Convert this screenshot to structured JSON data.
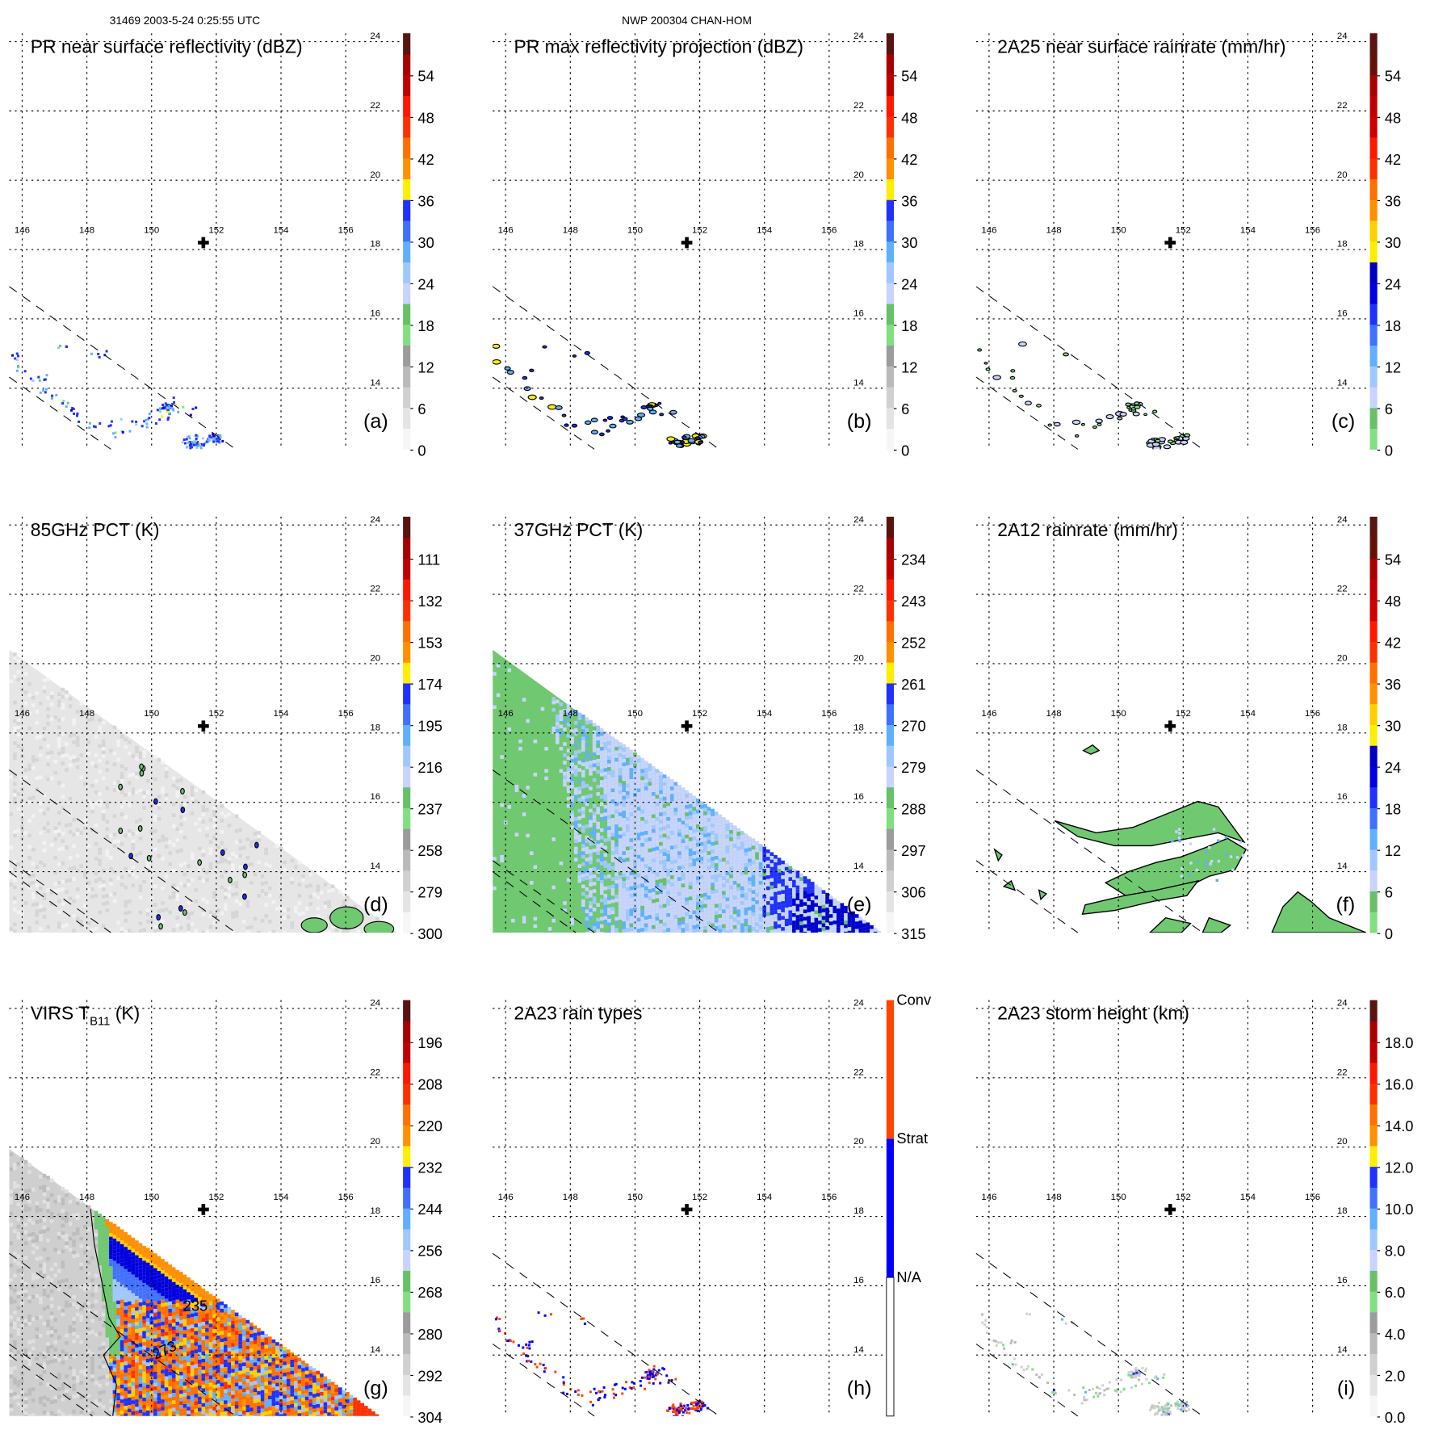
{
  "header": {
    "left": "31469 2003-5-24 0:25:55 UTC",
    "center": "NWP 200304 CHAN-HOM"
  },
  "chart_data": {
    "type": "heatmap",
    "lat_ticks": [
      "24",
      "22",
      "20",
      "18",
      "16",
      "14"
    ],
    "lon_ticks": [
      "146",
      "148",
      "150",
      "152",
      "154",
      "156"
    ],
    "lat_values": [
      24,
      22,
      20,
      18,
      16,
      14
    ],
    "lon_values": [
      146,
      148,
      150,
      152,
      154,
      156
    ],
    "storm_center": {
      "lon": 151.6,
      "lat": 18.2
    },
    "grid": "dotted",
    "palettes": {
      "std": [
        "#f6f6f6",
        "#e4e4e4",
        "#d0d0d0",
        "#bababa",
        "#9c9c9c",
        "#80e080",
        "#68c068",
        "#c8d4ff",
        "#a0c8ff",
        "#60b0ff",
        "#4070ff",
        "#2030ff",
        "#ffee00",
        "#ff9000",
        "#ff7000",
        "#ff3000",
        "#ff1800",
        "#c00000",
        "#a80000",
        "#5a1410"
      ],
      "rain": [
        "#80e080",
        "#68c068",
        "#c8d4ff",
        "#a0c8ff",
        "#60b0ff",
        "#4070ff",
        "#2030ff",
        "#0000e0",
        "#0000c0",
        "#ffee00",
        "#ffd000",
        "#ff9000",
        "#ff7000",
        "#ff3000",
        "#ff1800",
        "#d00000",
        "#c00000",
        "#a80000",
        "#641208",
        "#5a1410"
      ],
      "types": [
        "#ffffff",
        "#0000ff",
        "#ff4500"
      ]
    },
    "panels": [
      {
        "letter": "(a)",
        "title": "PR near surface reflectivity (dBZ)",
        "palette": "std",
        "colorbar_labels": [
          "54",
          "48",
          "42",
          "36",
          "30",
          "24",
          "18",
          "12",
          "6",
          "0"
        ]
      },
      {
        "letter": "(b)",
        "title": "PR max reflectivity projection (dBZ)",
        "palette": "std",
        "colorbar_labels": [
          "54",
          "48",
          "42",
          "36",
          "30",
          "24",
          "18",
          "12",
          "6",
          "0"
        ]
      },
      {
        "letter": "(c)",
        "title": "2A25 near surface rainrate (mm/hr)",
        "palette": "rain",
        "colorbar_labels": [
          "54",
          "48",
          "42",
          "36",
          "30",
          "24",
          "18",
          "12",
          "6",
          "0"
        ]
      },
      {
        "letter": "(d)",
        "title": "85GHz PCT (K)",
        "palette": "std",
        "colorbar_labels": [
          "111",
          "132",
          "153",
          "174",
          "195",
          "216",
          "237",
          "258",
          "279",
          "300"
        ]
      },
      {
        "letter": "(e)",
        "title": "37GHz PCT (K)",
        "palette": "std",
        "colorbar_labels": [
          "234",
          "243",
          "252",
          "261",
          "270",
          "279",
          "288",
          "297",
          "306",
          "315"
        ]
      },
      {
        "letter": "(f)",
        "title": "2A12 rainrate (mm/hr)",
        "palette": "rain",
        "colorbar_labels": [
          "54",
          "48",
          "42",
          "36",
          "30",
          "24",
          "18",
          "12",
          "6",
          "0"
        ]
      },
      {
        "letter": "(g)",
        "title": "VIRS T",
        "title_sub": "B11",
        "title_suffix": " (K)",
        "palette": "std",
        "colorbar_labels": [
          "196",
          "208",
          "220",
          "232",
          "244",
          "256",
          "268",
          "280",
          "292",
          "304"
        ],
        "contour_labels": [
          "235",
          "273"
        ]
      },
      {
        "letter": "(h)",
        "title": "2A23 rain types",
        "palette": "types",
        "colorbar_labels": [
          "Conv",
          "Strat",
          "N/A"
        ]
      },
      {
        "letter": "(i)",
        "title": "2A23 storm height (km)",
        "palette": "std",
        "colorbar_labels": [
          "18.0",
          "16.0",
          "14.0",
          "12.0",
          "10.0",
          "8.0",
          "6.0",
          "4.0",
          "2.0",
          "0.0"
        ]
      }
    ]
  }
}
